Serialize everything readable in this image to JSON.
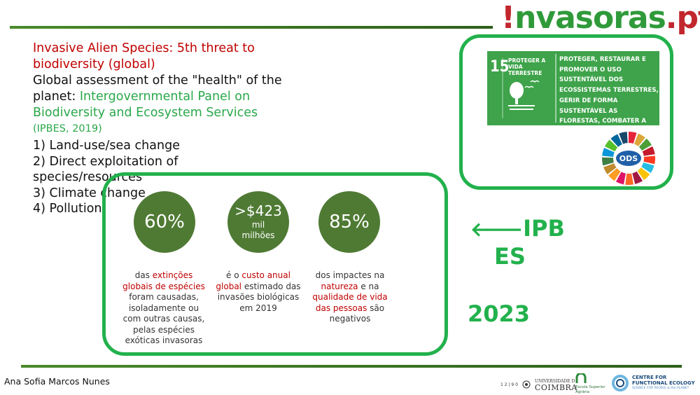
{
  "brand": {
    "bang": "!",
    "name": "nvasoras",
    "dot_pt": ".pt"
  },
  "left": {
    "heading_red": "Invasive Alien Species: 5th threat to biodiversity (global)",
    "global_text": "Global assessment of the \"health\" of the planet: ",
    "panel_green": "Intergovernmental Panel on Biodiversity and Ecosystem Services",
    "panel_year": "(IPBES, 2019)",
    "items": [
      "1) Land-use/sea change",
      "2) Direct exploitation of species/resources",
      "3) Climate change",
      "4) Pollution"
    ]
  },
  "stats": [
    {
      "big": "60%",
      "small": "",
      "caption_parts": [
        [
          "das ",
          ""
        ],
        [
          "extinções globais de espécies",
          "r"
        ],
        [
          " foram causadas, isoladamente ou com outras causas, pelas espécies exóticas invasoras",
          ""
        ]
      ]
    },
    {
      "big": ">$423",
      "small": "mil milhões",
      "caption_parts": [
        [
          "é o ",
          ""
        ],
        [
          "custo anual global",
          "r"
        ],
        [
          " estimado das invasões biológicas em 2019",
          ""
        ]
      ]
    },
    {
      "big": "85%",
      "small": "",
      "caption_parts": [
        [
          "dos impactes na ",
          ""
        ],
        [
          "natureza",
          "r"
        ],
        [
          " e na ",
          ""
        ],
        [
          "qualidade de vida das pessoas",
          "r"
        ],
        [
          " são negativos",
          ""
        ]
      ]
    }
  ],
  "sdg": {
    "number": "15",
    "title": "PROTEGER A VIDA TERRESTRE",
    "description": "PROTEGER, RESTAURAR E PROMOVER O USO SUSTENTÁVEL DOS ECOSSISTEMAS TERRESTRES, GERIR DE FORMA SUSTENTÁVEL AS FLORESTAS, COMBATER A DESERTIFICAÇÃO, TRAVAR",
    "wheel_label": "ODS",
    "color": "#3ea34a"
  },
  "side": {
    "arrow": "🡐",
    "ipbes_line1": "IPB",
    "ipbes_line2": "ES",
    "year": "2023"
  },
  "footer": {
    "author": "Ana Sofia Marcos Nunes",
    "uc_years": "1 2 | 9 0",
    "uc_line1": "UNIVERSIDADE D",
    "uc_line2": "COIMBRA",
    "esa_line1": "Escola Superior",
    "esa_line2": "Agrária",
    "cfe_line1": "CENTRE FOR",
    "cfe_line2": "FUNCTIONAL ECOLOGY",
    "cfe_line3": "SCIENCE FOR PEOPLE & the PLANET"
  },
  "colors": {
    "accent_green": "#22b14c",
    "red": "#c00000",
    "circle_green": "#4f7a34"
  }
}
